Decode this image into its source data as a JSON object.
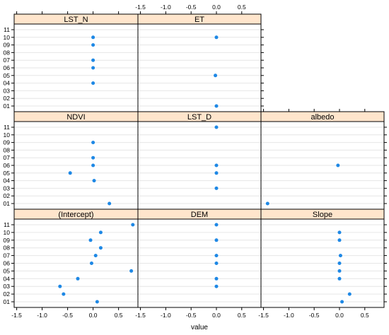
{
  "chart_data": {
    "type": "scatter",
    "layout": "lattice dotplot, 3 columns x 3 rows",
    "xlabel": "value",
    "xticks": [
      "-1.5",
      "-1.0",
      "-0.5",
      "0.0",
      "0.5"
    ],
    "xlim": [
      -1.55,
      0.88
    ],
    "y_categories": [
      "01",
      "02",
      "03",
      "04",
      "05",
      "06",
      "07",
      "08",
      "09",
      "10",
      "11"
    ],
    "colors": {
      "strip": "#ffe5cc",
      "point": "#1e88e5",
      "gridline": "#e6e6e6",
      "frame": "#000000"
    },
    "panels": [
      {
        "name": "LST_N",
        "row": 0,
        "col": 0,
        "points": [
          {
            "y": "10",
            "x": 0.0
          },
          {
            "y": "09",
            "x": 0.0
          },
          {
            "y": "07",
            "x": 0.0
          },
          {
            "y": "06",
            "x": 0.0
          },
          {
            "y": "04",
            "x": 0.0
          }
        ]
      },
      {
        "name": "ET",
        "row": 0,
        "col": 1,
        "points": [
          {
            "y": "10",
            "x": 0.0
          },
          {
            "y": "05",
            "x": -0.02
          },
          {
            "y": "01",
            "x": 0.0
          }
        ]
      },
      {
        "name": "NDVI",
        "row": 1,
        "col": 0,
        "points": [
          {
            "y": "09",
            "x": 0.0
          },
          {
            "y": "07",
            "x": 0.0
          },
          {
            "y": "06",
            "x": 0.0
          },
          {
            "y": "05",
            "x": -0.45
          },
          {
            "y": "04",
            "x": 0.02
          },
          {
            "y": "01",
            "x": 0.32
          }
        ]
      },
      {
        "name": "LST_D",
        "row": 1,
        "col": 1,
        "points": [
          {
            "y": "11",
            "x": 0.0
          },
          {
            "y": "06",
            "x": 0.0
          },
          {
            "y": "05",
            "x": 0.0
          },
          {
            "y": "03",
            "x": 0.0
          }
        ]
      },
      {
        "name": "albedo",
        "row": 1,
        "col": 2,
        "points": [
          {
            "y": "06",
            "x": -0.03
          },
          {
            "y": "01",
            "x": -1.42
          }
        ]
      },
      {
        "name": "(Intercept)",
        "row": 2,
        "col": 0,
        "points": [
          {
            "y": "11",
            "x": 0.78
          },
          {
            "y": "10",
            "x": 0.15
          },
          {
            "y": "09",
            "x": -0.05
          },
          {
            "y": "08",
            "x": 0.15
          },
          {
            "y": "07",
            "x": 0.05
          },
          {
            "y": "06",
            "x": -0.03
          },
          {
            "y": "05",
            "x": 0.75
          },
          {
            "y": "04",
            "x": -0.3
          },
          {
            "y": "03",
            "x": -0.65
          },
          {
            "y": "02",
            "x": -0.58
          },
          {
            "y": "01",
            "x": 0.08
          }
        ]
      },
      {
        "name": "DEM",
        "row": 2,
        "col": 1,
        "points": [
          {
            "y": "11",
            "x": 0.0
          },
          {
            "y": "09",
            "x": 0.0
          },
          {
            "y": "07",
            "x": 0.0
          },
          {
            "y": "06",
            "x": 0.0
          },
          {
            "y": "04",
            "x": 0.0
          },
          {
            "y": "03",
            "x": 0.0
          }
        ]
      },
      {
        "name": "Slope",
        "row": 2,
        "col": 2,
        "points": [
          {
            "y": "10",
            "x": 0.0
          },
          {
            "y": "09",
            "x": 0.0
          },
          {
            "y": "07",
            "x": 0.02
          },
          {
            "y": "06",
            "x": 0.0
          },
          {
            "y": "05",
            "x": 0.0
          },
          {
            "y": "04",
            "x": 0.0
          },
          {
            "y": "02",
            "x": 0.2
          },
          {
            "y": "01",
            "x": 0.05
          }
        ]
      }
    ]
  }
}
